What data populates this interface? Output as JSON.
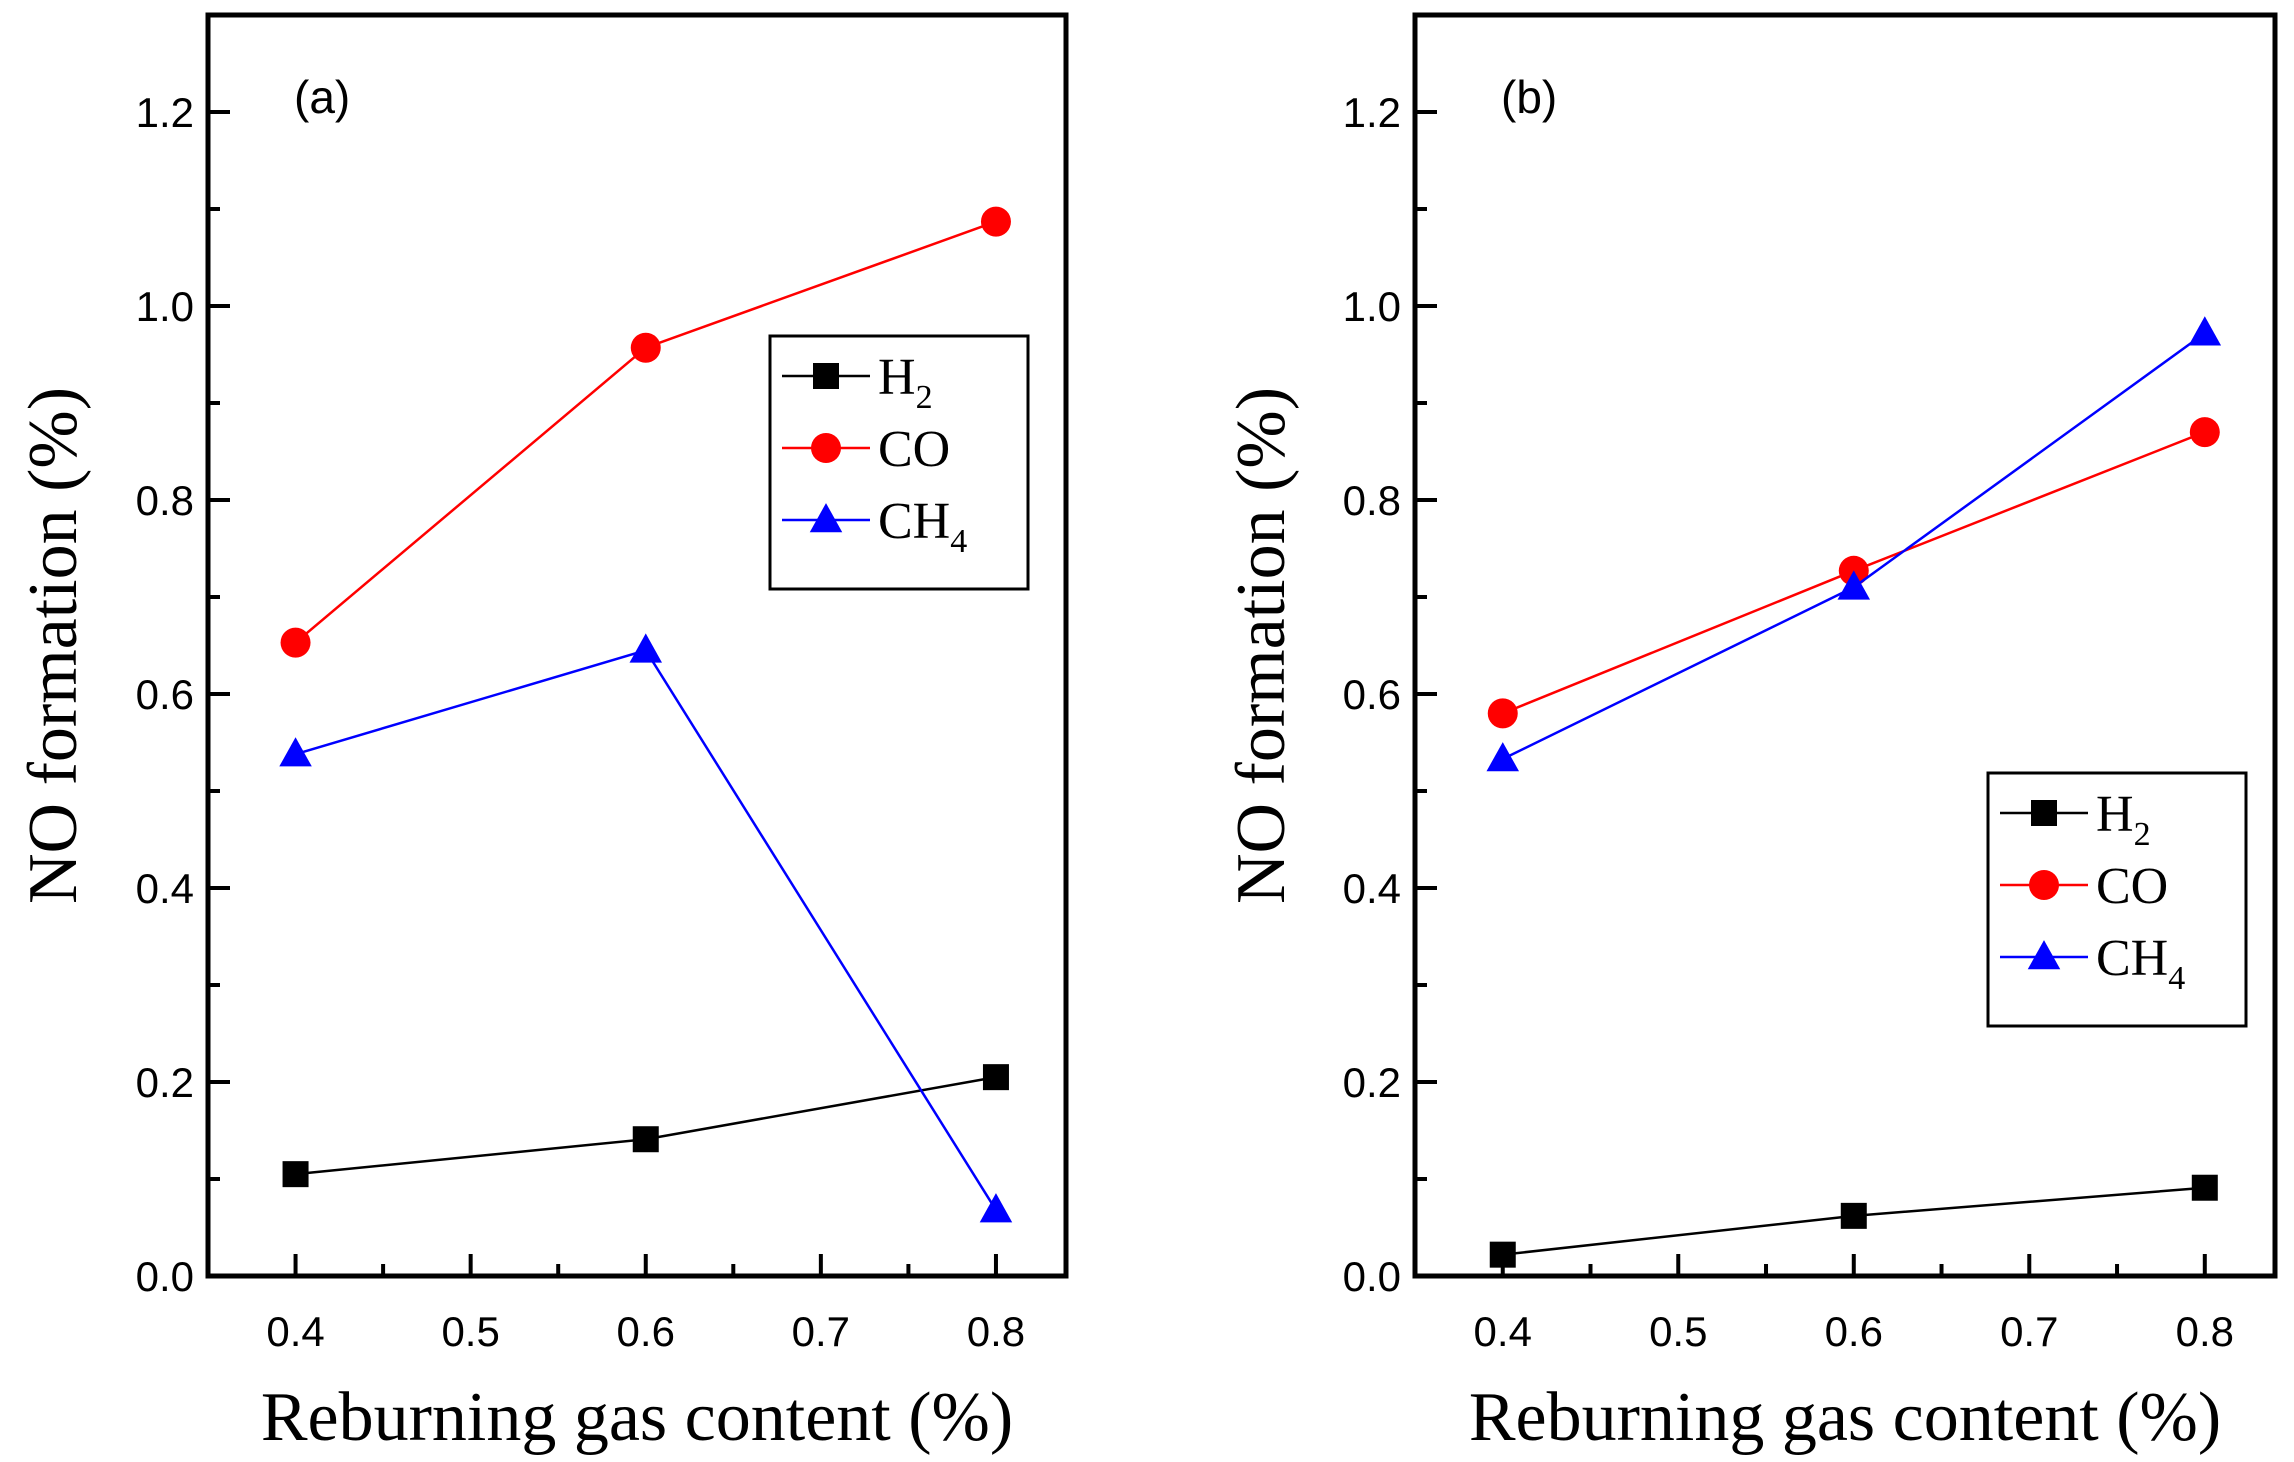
{
  "chart_data": [
    {
      "type": "line",
      "panel_label": "(a)",
      "xlabel": "Reburning gas content (%)",
      "ylabel": "NO formation (%)",
      "xlim": [
        0.35,
        0.84
      ],
      "ylim": [
        0.0,
        1.3
      ],
      "xticks": [
        "0.4",
        "0.5",
        "0.6",
        "0.7",
        "0.8"
      ],
      "yticks": [
        "0.0",
        "0.2",
        "0.4",
        "0.6",
        "0.8",
        "1.0",
        "1.2"
      ],
      "legend_position": "upper-right",
      "x": [
        0.4,
        0.6,
        0.8
      ],
      "series": [
        {
          "name": "H2",
          "label_main": "H",
          "label_sub": "2",
          "color": "#000000",
          "marker": "square",
          "values": [
            0.105,
            0.141,
            0.205
          ]
        },
        {
          "name": "CO",
          "label_main": "CO",
          "label_sub": "",
          "color": "#ff0000",
          "marker": "circle",
          "values": [
            0.653,
            0.957,
            1.087
          ]
        },
        {
          "name": "CH4",
          "label_main": "CH",
          "label_sub": "4",
          "color": "#0000ff",
          "marker": "triangle",
          "values": [
            0.538,
            0.645,
            0.068
          ]
        }
      ]
    },
    {
      "type": "line",
      "panel_label": "(b)",
      "xlabel": "Reburning gas content (%)",
      "ylabel": "NO formation (%)",
      "xlim": [
        0.35,
        0.84
      ],
      "ylim": [
        0.0,
        1.3
      ],
      "xticks": [
        "0.4",
        "0.5",
        "0.6",
        "0.7",
        "0.8"
      ],
      "yticks": [
        "0.0",
        "0.2",
        "0.4",
        "0.6",
        "0.8",
        "1.0",
        "1.2"
      ],
      "legend_position": "lower-right",
      "x": [
        0.4,
        0.6,
        0.8
      ],
      "series": [
        {
          "name": "H2",
          "label_main": "H",
          "label_sub": "2",
          "color": "#000000",
          "marker": "square",
          "values": [
            0.022,
            0.062,
            0.091
          ]
        },
        {
          "name": "CO",
          "label_main": "CO",
          "label_sub": "",
          "color": "#ff0000",
          "marker": "circle",
          "values": [
            0.58,
            0.727,
            0.87
          ]
        },
        {
          "name": "CH4",
          "label_main": "CH",
          "label_sub": "4",
          "color": "#0000ff",
          "marker": "triangle",
          "values": [
            0.533,
            0.71,
            0.972
          ]
        }
      ]
    }
  ]
}
